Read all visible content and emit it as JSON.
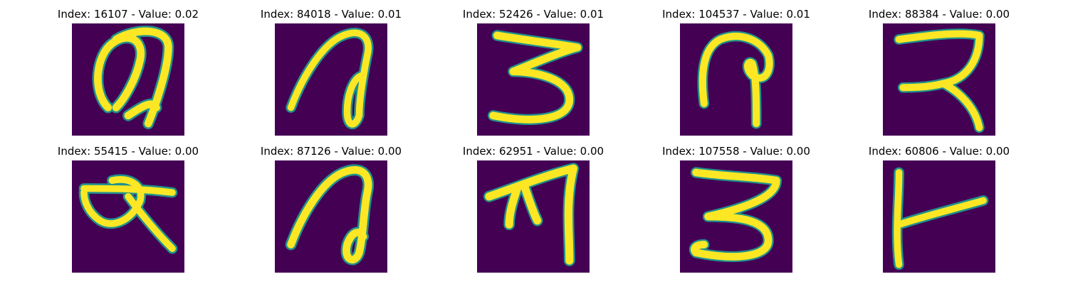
{
  "figure": {
    "panels": [
      {
        "index": "16107",
        "value": "0.02",
        "title": "Index: 16107 - Value: 0.02",
        "glyph": "glyph-a-loop"
      },
      {
        "index": "84018",
        "value": "0.01",
        "title": "Index: 84018 - Value: 0.01",
        "glyph": "glyph-loop-hook"
      },
      {
        "index": "52426",
        "value": "0.01",
        "title": "Index: 52426 - Value: 0.01",
        "glyph": "glyph-three"
      },
      {
        "index": "104537",
        "value": "0.01",
        "title": "Index: 104537 - Value: 0.01",
        "glyph": "glyph-question-hook"
      },
      {
        "index": "88384",
        "value": "0.00",
        "title": "Index: 88384 - Value: 0.00",
        "glyph": "glyph-r-shape"
      },
      {
        "index": "55415",
        "value": "0.00",
        "title": "Index: 55415 - Value: 0.00",
        "glyph": "glyph-loop-kick"
      },
      {
        "index": "87126",
        "value": "0.00",
        "title": "Index: 87126 - Value: 0.00",
        "glyph": "glyph-loop-hook"
      },
      {
        "index": "62951",
        "value": "0.00",
        "title": "Index: 62951 - Value: 0.00",
        "glyph": "glyph-arrow-hook"
      },
      {
        "index": "107558",
        "value": "0.00",
        "title": "Index: 107558 - Value: 0.00",
        "glyph": "glyph-three"
      },
      {
        "index": "60806",
        "value": "0.00",
        "title": "Index: 60806 - Value: 0.00",
        "glyph": "glyph-t-shape"
      }
    ],
    "colors": {
      "background": "#440154",
      "edge": "#21918c",
      "foreground": "#fde725"
    }
  }
}
